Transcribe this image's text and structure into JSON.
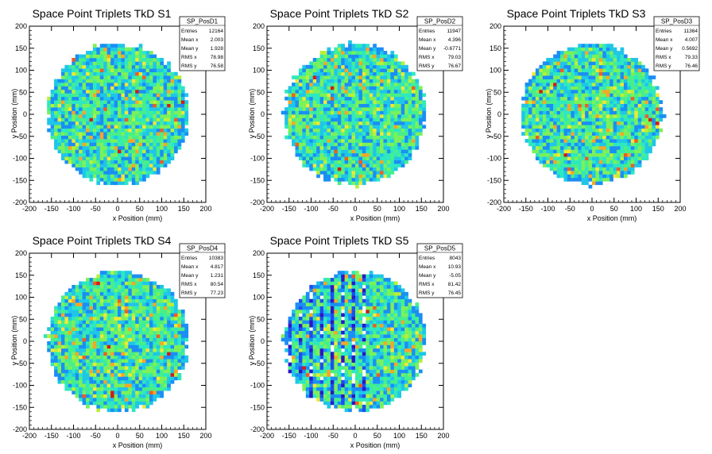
{
  "canvas_background": "#ffffff",
  "chart_data": [
    {
      "type": "heatmap",
      "title": "Space Point Triplets TkD S1",
      "xlabel": "x Position (mm)",
      "ylabel": "y Position (mm)",
      "xlim": [
        -200,
        200
      ],
      "ylim": [
        -200,
        200
      ],
      "x_ticks": [
        -200,
        -150,
        -100,
        -50,
        0,
        50,
        100,
        150,
        200
      ],
      "y_ticks": [
        -200,
        -150,
        -100,
        -50,
        0,
        50,
        100,
        150,
        200
      ],
      "stats": {
        "name": "SP_PosD1",
        "rows": [
          [
            "Entries",
            "12164"
          ],
          [
            "Mean x",
            "2.003"
          ],
          [
            "Mean y",
            "1.928"
          ],
          [
            "RMS x",
            "78.98"
          ],
          [
            "RMS y",
            "76.58"
          ]
        ]
      },
      "seed": 11
    },
    {
      "type": "heatmap",
      "title": "Space Point Triplets TkD S2",
      "xlabel": "x Position (mm)",
      "ylabel": "y Position (mm)",
      "xlim": [
        -200,
        200
      ],
      "ylim": [
        -200,
        200
      ],
      "x_ticks": [
        -200,
        -150,
        -100,
        -50,
        0,
        50,
        100,
        150,
        200
      ],
      "y_ticks": [
        -200,
        -150,
        -100,
        -50,
        0,
        50,
        100,
        150,
        200
      ],
      "stats": {
        "name": "SP_PosD2",
        "rows": [
          [
            "Entries",
            "11947"
          ],
          [
            "Mean x",
            "4.396"
          ],
          [
            "Mean y",
            "-0.6771"
          ],
          [
            "RMS x",
            "79.03"
          ],
          [
            "RMS y",
            "76.67"
          ]
        ]
      },
      "seed": 23
    },
    {
      "type": "heatmap",
      "title": "Space Point Triplets TkD S3",
      "xlabel": "x Position (mm)",
      "ylabel": "y Position (mm)",
      "xlim": [
        -200,
        200
      ],
      "ylim": [
        -200,
        200
      ],
      "x_ticks": [
        -200,
        -150,
        -100,
        -50,
        0,
        50,
        100,
        150,
        200
      ],
      "y_ticks": [
        -200,
        -150,
        -100,
        -50,
        0,
        50,
        100,
        150,
        200
      ],
      "stats": {
        "name": "SP_PosD3",
        "rows": [
          [
            "Entries",
            "11364"
          ],
          [
            "Mean x",
            "4.007"
          ],
          [
            "Mean y",
            "0.5692"
          ],
          [
            "RMS x",
            "79.33"
          ],
          [
            "RMS y",
            "76.46"
          ]
        ]
      },
      "seed": 37
    },
    {
      "type": "heatmap",
      "title": "Space Point Triplets TkD S4",
      "xlabel": "x Position (mm)",
      "ylabel": "y Position (mm)",
      "xlim": [
        -200,
        200
      ],
      "ylim": [
        -200,
        200
      ],
      "x_ticks": [
        -200,
        -150,
        -100,
        -50,
        0,
        50,
        100,
        150,
        200
      ],
      "y_ticks": [
        -200,
        -150,
        -100,
        -50,
        0,
        50,
        100,
        150,
        200
      ],
      "stats": {
        "name": "SP_PosD4",
        "rows": [
          [
            "Entries",
            "10383"
          ],
          [
            "Mean x",
            "4.817"
          ],
          [
            "Mean y",
            "1.231"
          ],
          [
            "RMS x",
            "80.54"
          ],
          [
            "RMS y",
            "77.23"
          ]
        ]
      },
      "seed": 51
    },
    {
      "type": "heatmap",
      "title": "Space Point Triplets TkD S5",
      "xlabel": "x Position (mm)",
      "ylabel": "y Position (mm)",
      "xlim": [
        -200,
        200
      ],
      "ylim": [
        -200,
        200
      ],
      "x_ticks": [
        -200,
        -150,
        -100,
        -50,
        0,
        50,
        100,
        150,
        200
      ],
      "y_ticks": [
        -200,
        -150,
        -100,
        -50,
        0,
        50,
        100,
        150,
        200
      ],
      "stats": {
        "name": "SP_PosD5",
        "rows": [
          [
            "Entries",
            "8043"
          ],
          [
            "Mean x",
            "10.93"
          ],
          [
            "Mean y",
            "-5.05"
          ],
          [
            "RMS x",
            "81.42"
          ],
          [
            "RMS y",
            "76.45"
          ]
        ]
      },
      "seed": 67,
      "sparse_columns": true
    }
  ]
}
